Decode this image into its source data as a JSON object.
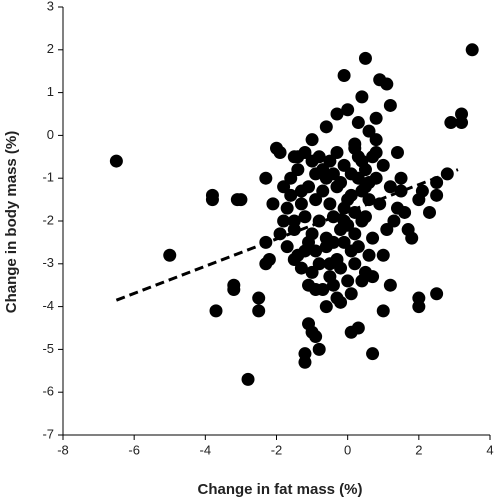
{
  "chart_data": {
    "type": "scatter",
    "xlabel": "Change in fat mass (%)",
    "ylabel": "Change in body mass (%)",
    "color": "#000000",
    "x": [
      -6.5,
      -5.0,
      -3.8,
      -3.8,
      -3.7,
      -3.2,
      -3.2,
      -3.1,
      -3.0,
      -2.8,
      -2.5,
      -2.5,
      -2.3,
      -2.3,
      -2.3,
      -2.2,
      -2.0,
      -1.9,
      -1.8,
      -1.9,
      -1.7,
      -1.6,
      -1.5,
      -1.4,
      -1.3,
      -1.2,
      -1.1,
      -1.1,
      -1.0,
      -1.2,
      -1.2,
      -0.9,
      -0.8,
      -0.7,
      -0.6,
      -0.5,
      -0.4,
      -0.3,
      -0.2,
      -0.1,
      0.0,
      0.1,
      0.3,
      0.7,
      1.0,
      0.7,
      1.2,
      1.0,
      0.5,
      0.3,
      0.3,
      0.4,
      0.5,
      -0.1,
      0.0,
      0.8,
      0.9,
      1.1,
      1.2,
      0.6,
      0.8,
      1.4,
      1.6,
      1.5,
      1.7,
      1.8,
      2.0,
      2.1,
      2.3,
      2.5,
      2.5,
      2.0,
      2.0,
      2.5,
      2.8,
      2.9,
      3.2,
      3.2,
      3.5,
      -0.3,
      -1.5,
      -1.4,
      -1.2,
      -1.0,
      -0.9,
      -0.8,
      -0.7,
      -0.6,
      -0.5,
      -0.4,
      -0.3,
      -0.2,
      -0.1,
      0.1,
      0.2,
      0.3,
      0.4,
      0.5,
      0.6,
      0.7,
      0.8,
      1.0,
      -1.6,
      -1.3,
      -1.1,
      -0.9,
      -0.7,
      -0.5,
      -0.3,
      -0.1,
      0.1,
      0.2,
      0.4,
      0.6,
      0.9,
      1.2,
      1.4,
      -1.8,
      -1.5,
      -1.2,
      -1.0,
      -0.8,
      -0.6,
      -0.4,
      -0.2,
      0.0,
      0.2,
      0.4,
      0.5,
      0.7,
      1.1,
      1.3,
      -1.7,
      -1.4,
      -1.1,
      -0.9,
      -0.6,
      -0.3,
      -0.1,
      0.1,
      0.3,
      0.6,
      -1.3,
      -1.0,
      -0.8,
      -0.5,
      -0.2,
      0.0,
      0.2,
      0.5,
      -1.5,
      -0.9,
      -0.4,
      0.1,
      0.4,
      -2.1,
      -1.0,
      -0.6,
      0.2,
      0.8,
      1.5
    ],
    "y": [
      -0.6,
      -2.8,
      -1.4,
      -1.5,
      -4.1,
      -3.5,
      -3.6,
      -1.5,
      -1.5,
      -5.7,
      -3.8,
      -4.1,
      -1.0,
      -2.5,
      -3.0,
      -2.9,
      -0.3,
      -0.4,
      -1.2,
      -2.3,
      -1.7,
      -1.0,
      -2.0,
      -0.5,
      -1.3,
      -2.7,
      -3.5,
      -4.4,
      -4.6,
      -5.1,
      -5.3,
      -4.7,
      -5.0,
      -3.6,
      -4.0,
      -3.0,
      -2.5,
      -3.8,
      -3.9,
      -2.0,
      -1.5,
      -4.6,
      -4.5,
      -5.1,
      -4.1,
      -3.3,
      -3.5,
      -2.8,
      -1.2,
      -0.5,
      0.3,
      0.9,
      1.8,
      1.4,
      0.6,
      0.4,
      1.3,
      1.2,
      0.7,
      0.1,
      -0.4,
      -0.4,
      -1.8,
      -1.3,
      -2.2,
      -2.4,
      -1.5,
      -1.3,
      -1.8,
      -1.4,
      -1.1,
      -3.8,
      -4.0,
      -3.7,
      -0.9,
      0.3,
      0.3,
      0.5,
      2.0,
      0.5,
      -0.5,
      -0.8,
      -0.4,
      -0.6,
      -0.9,
      -0.5,
      -0.8,
      -1.0,
      -0.6,
      -0.9,
      -0.4,
      -1.1,
      -0.7,
      -0.9,
      -0.3,
      -1.0,
      -0.6,
      -0.8,
      -1.1,
      -0.5,
      -1.0,
      -0.7,
      -1.4,
      -1.6,
      -1.2,
      -1.5,
      -1.3,
      -1.6,
      -1.2,
      -1.7,
      -1.4,
      -1.8,
      -1.3,
      -1.5,
      -1.6,
      -1.2,
      -1.7,
      -2.0,
      -2.2,
      -1.9,
      -2.3,
      -2.0,
      -2.4,
      -1.9,
      -2.2,
      -2.1,
      -2.3,
      -2.0,
      -1.9,
      -2.4,
      -2.2,
      -2.0,
      -2.6,
      -2.8,
      -2.5,
      -2.7,
      -2.6,
      -2.9,
      -2.5,
      -2.7,
      -2.6,
      -2.8,
      -3.1,
      -3.2,
      -3.0,
      -3.3,
      -3.1,
      -3.4,
      -3.0,
      -3.2,
      -2.9,
      -3.6,
      -3.5,
      -3.7,
      -3.4,
      -1.6,
      -0.1,
      0.2,
      -0.2,
      -0.1,
      -1.0
    ],
    "trend_line": {
      "x": [
        -6.5,
        3.1
      ],
      "y": [
        -3.85,
        -0.8
      ]
    },
    "xlim": [
      -8,
      4
    ],
    "xticks": [
      -8,
      -6,
      -4,
      -2,
      0,
      2,
      4
    ],
    "ylim": [
      -7,
      3
    ],
    "yticks": [
      -7,
      -6,
      -5,
      -4,
      -3,
      -2,
      -1,
      0,
      1,
      2,
      3
    ],
    "grid": false
  }
}
